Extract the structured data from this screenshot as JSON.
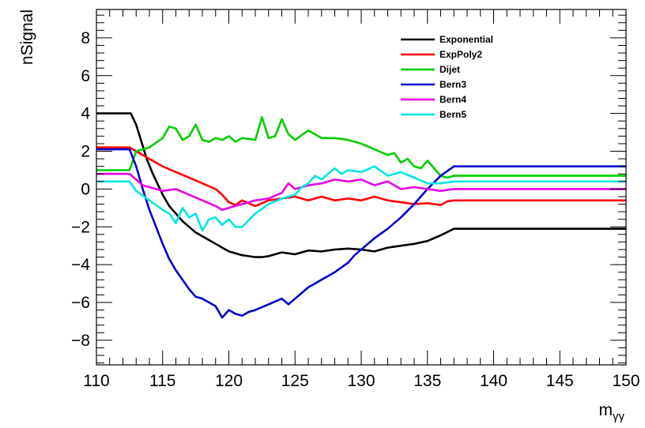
{
  "chart_data": {
    "type": "line",
    "title": "",
    "xlabel": "m",
    "xlabel_sub": "γγ",
    "ylabel": "nSignal",
    "xlim": [
      110,
      150
    ],
    "ylim": [
      -9.3,
      9.5
    ],
    "xticks": [
      110,
      115,
      120,
      125,
      130,
      135,
      140,
      145,
      150
    ],
    "xtick_labels": [
      "110",
      "115",
      "120",
      "125",
      "130",
      "135",
      "140",
      "145",
      "150"
    ],
    "yticks": [
      -8,
      -6,
      -4,
      -2,
      0,
      2,
      4,
      6,
      8
    ],
    "ytick_labels": [
      "−8",
      "−6",
      "−4",
      "−2",
      "0",
      "2",
      "4",
      "6",
      "8"
    ],
    "grid": false,
    "legend_position": "top-right",
    "series": [
      {
        "name": "Exponential",
        "color": "#000000",
        "x": [
          110,
          112.6,
          113,
          113.4,
          113.8,
          114.2,
          114.6,
          115,
          115.5,
          116,
          116.5,
          117,
          117.5,
          118,
          118.5,
          119,
          119.5,
          120,
          120.5,
          121,
          121.5,
          122,
          122.5,
          123,
          124,
          125,
          126,
          127,
          128,
          129,
          130,
          131,
          132,
          133,
          134,
          135,
          136,
          137,
          150
        ],
        "y": [
          4.0,
          4.0,
          3.4,
          2.5,
          1.6,
          0.9,
          0.3,
          -0.3,
          -0.9,
          -1.3,
          -1.7,
          -2.0,
          -2.3,
          -2.5,
          -2.7,
          -2.9,
          -3.1,
          -3.3,
          -3.4,
          -3.5,
          -3.55,
          -3.6,
          -3.6,
          -3.55,
          -3.35,
          -3.45,
          -3.25,
          -3.3,
          -3.2,
          -3.15,
          -3.2,
          -3.3,
          -3.1,
          -3.0,
          -2.9,
          -2.75,
          -2.45,
          -2.1,
          -2.1
        ]
      },
      {
        "name": "ExpPoly2",
        "color": "#ff0000",
        "x": [
          110,
          112.5,
          113,
          114,
          115,
          116,
          117,
          118,
          119,
          119.5,
          120,
          120.5,
          121,
          122,
          123,
          124,
          125,
          126,
          127,
          128,
          129,
          130,
          131,
          132,
          133,
          134,
          135,
          136,
          136.5,
          137,
          150
        ],
        "y": [
          2.2,
          2.2,
          2.0,
          1.6,
          1.2,
          0.9,
          0.6,
          0.3,
          0.0,
          -0.3,
          -0.7,
          -0.85,
          -0.6,
          -0.9,
          -0.6,
          -0.5,
          -0.4,
          -0.6,
          -0.4,
          -0.6,
          -0.5,
          -0.6,
          -0.4,
          -0.6,
          -0.7,
          -0.8,
          -0.75,
          -0.85,
          -0.65,
          -0.6,
          -0.6
        ]
      },
      {
        "name": "Dijet",
        "color": "#00cc00",
        "x": [
          110,
          112.5,
          113,
          114,
          115,
          115.5,
          116,
          116.5,
          117,
          117.5,
          118,
          118.5,
          119,
          119.5,
          120,
          120.5,
          121,
          122,
          122.5,
          123,
          123.5,
          124,
          124.5,
          125,
          126,
          127,
          128,
          129,
          130,
          131,
          132,
          132.5,
          133,
          133.5,
          134,
          134.5,
          135,
          136,
          136.5,
          137,
          150
        ],
        "y": [
          1.0,
          1.0,
          2.0,
          2.2,
          2.7,
          3.3,
          3.2,
          2.6,
          2.8,
          3.4,
          2.6,
          2.5,
          2.7,
          2.6,
          2.8,
          2.5,
          2.7,
          2.6,
          3.8,
          2.7,
          2.8,
          3.7,
          2.9,
          2.6,
          3.1,
          2.7,
          2.7,
          2.6,
          2.4,
          2.1,
          1.8,
          1.9,
          1.4,
          1.6,
          1.2,
          1.1,
          1.5,
          0.7,
          0.6,
          0.7,
          0.7
        ]
      },
      {
        "name": "Bern3",
        "color": "#0000cc",
        "x": [
          110,
          112.5,
          113,
          113.5,
          114,
          114.5,
          115,
          115.5,
          116,
          116.5,
          117,
          117.5,
          118,
          118.5,
          119,
          119.5,
          120,
          120.5,
          121,
          121.5,
          122,
          123,
          124,
          124.5,
          125,
          126,
          127,
          128,
          129,
          129.5,
          130,
          130.5,
          131,
          132,
          133,
          134,
          135,
          136,
          137,
          150
        ],
        "y": [
          2.1,
          2.1,
          1.2,
          0.0,
          -1.1,
          -2.0,
          -2.9,
          -3.7,
          -4.3,
          -4.8,
          -5.3,
          -5.7,
          -5.8,
          -6.0,
          -6.2,
          -6.8,
          -6.4,
          -6.6,
          -6.7,
          -6.5,
          -6.4,
          -6.1,
          -5.8,
          -6.1,
          -5.8,
          -5.2,
          -4.8,
          -4.4,
          -3.9,
          -3.5,
          -3.2,
          -2.9,
          -2.6,
          -2.1,
          -1.5,
          -0.8,
          0.0,
          0.7,
          1.2,
          1.2
        ]
      },
      {
        "name": "Bern4",
        "color": "#e600e6",
        "x": [
          110,
          112.5,
          113,
          113.5,
          114,
          115,
          116,
          117,
          118,
          119,
          119.5,
          120,
          121,
          122,
          123,
          124,
          124.5,
          125,
          126,
          127,
          128,
          129,
          130,
          131,
          132,
          133,
          134,
          135,
          136,
          137,
          150
        ],
        "y": [
          0.8,
          0.8,
          0.5,
          0.2,
          0.1,
          -0.1,
          0.0,
          -0.3,
          -0.6,
          -0.9,
          -1.1,
          -1.0,
          -0.8,
          -0.6,
          -0.5,
          -0.2,
          0.3,
          0.0,
          0.2,
          0.3,
          0.5,
          0.4,
          0.5,
          0.2,
          0.4,
          0.0,
          0.1,
          0.0,
          -0.1,
          0.0,
          0.0
        ]
      },
      {
        "name": "Bern5",
        "color": "#00e6e6",
        "x": [
          110,
          112.5,
          113,
          114,
          115,
          115.5,
          116,
          116.5,
          117,
          117.5,
          118,
          118.5,
          119,
          119.5,
          120,
          120.5,
          121,
          122,
          123,
          124,
          125,
          125.5,
          126,
          126.5,
          127,
          127.5,
          128,
          128.5,
          129,
          130,
          131,
          132,
          133,
          134,
          135,
          136,
          137,
          150
        ],
        "y": [
          0.4,
          0.4,
          -0.1,
          -0.6,
          -1.1,
          -1.3,
          -1.8,
          -1.0,
          -1.5,
          -1.3,
          -2.2,
          -1.6,
          -1.5,
          -1.9,
          -1.6,
          -2.0,
          -2.0,
          -1.3,
          -0.8,
          -0.5,
          -0.3,
          0.1,
          0.3,
          0.7,
          0.5,
          0.8,
          1.1,
          0.8,
          1.0,
          0.9,
          1.2,
          0.7,
          0.9,
          0.6,
          0.3,
          0.3,
          0.4,
          0.4
        ]
      }
    ]
  }
}
